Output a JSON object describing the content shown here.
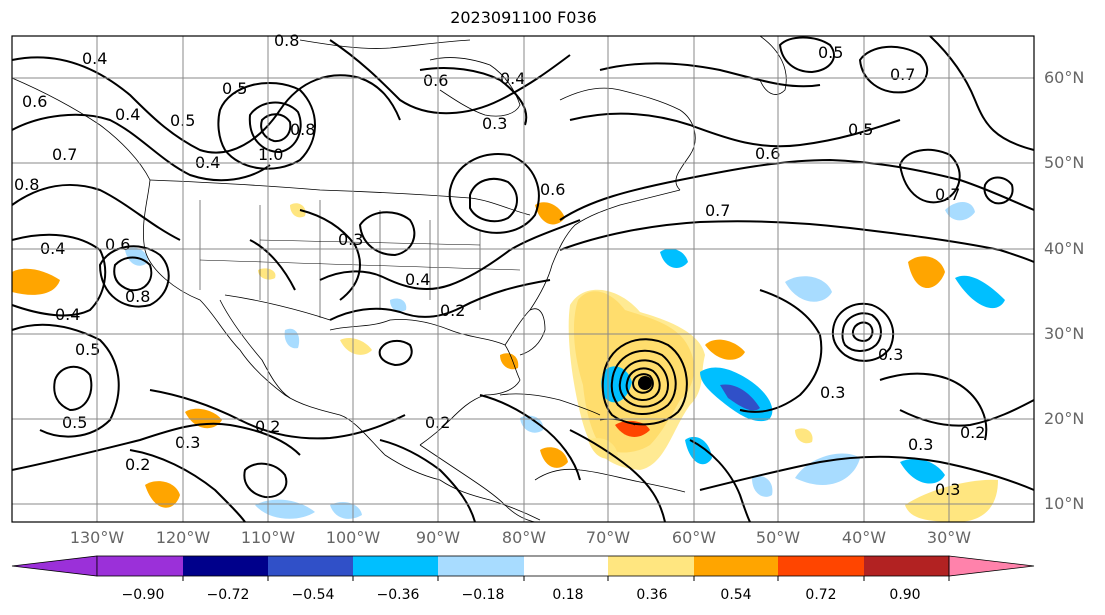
{
  "title": "2023091100 F036",
  "map": {
    "latitude_labels": [
      "60°N",
      "50°N",
      "40°N",
      "30°N",
      "20°N",
      "10°N"
    ],
    "longitude_labels": [
      "130°W",
      "120°W",
      "110°W",
      "100°W",
      "90°W",
      "80°W",
      "70°W",
      "60°W",
      "50°W",
      "40°W",
      "30°W"
    ],
    "contour_labels": [
      "0.4",
      "0.6",
      "0.8",
      "0.5",
      "0.6",
      "0.4",
      "0.5",
      "0.7",
      "0.5",
      "0.4",
      "0.7",
      "0.4",
      "0.8",
      "1.0",
      "0.8",
      "0.3",
      "0.6",
      "0.7",
      "0.6",
      "0.5",
      "0.7",
      "0.3",
      "0.4",
      "0.2",
      "0.4",
      "0.4",
      "0.5",
      "0.5",
      "0.6",
      "0.8",
      "0.3",
      "0.2",
      "0.2",
      "0.3",
      "0.3",
      "0.2",
      "0.3",
      "0.2",
      "0.3"
    ],
    "contour_color": "#000000",
    "coast_color": "#000000"
  },
  "colorbar": {
    "tick_labels": [
      "−0.90",
      "−0.72",
      "−0.54",
      "−0.36",
      "−0.18",
      "0.18",
      "0.36",
      "0.54",
      "0.72",
      "0.90"
    ],
    "colors": [
      "#9b30d9",
      "#00008b",
      "#3050c8",
      "#00bfff",
      "#a8dcff",
      "#ffffff",
      "#ffe680",
      "#ffa500",
      "#ff4500",
      "#b22222",
      "#ff82ab"
    ]
  }
}
